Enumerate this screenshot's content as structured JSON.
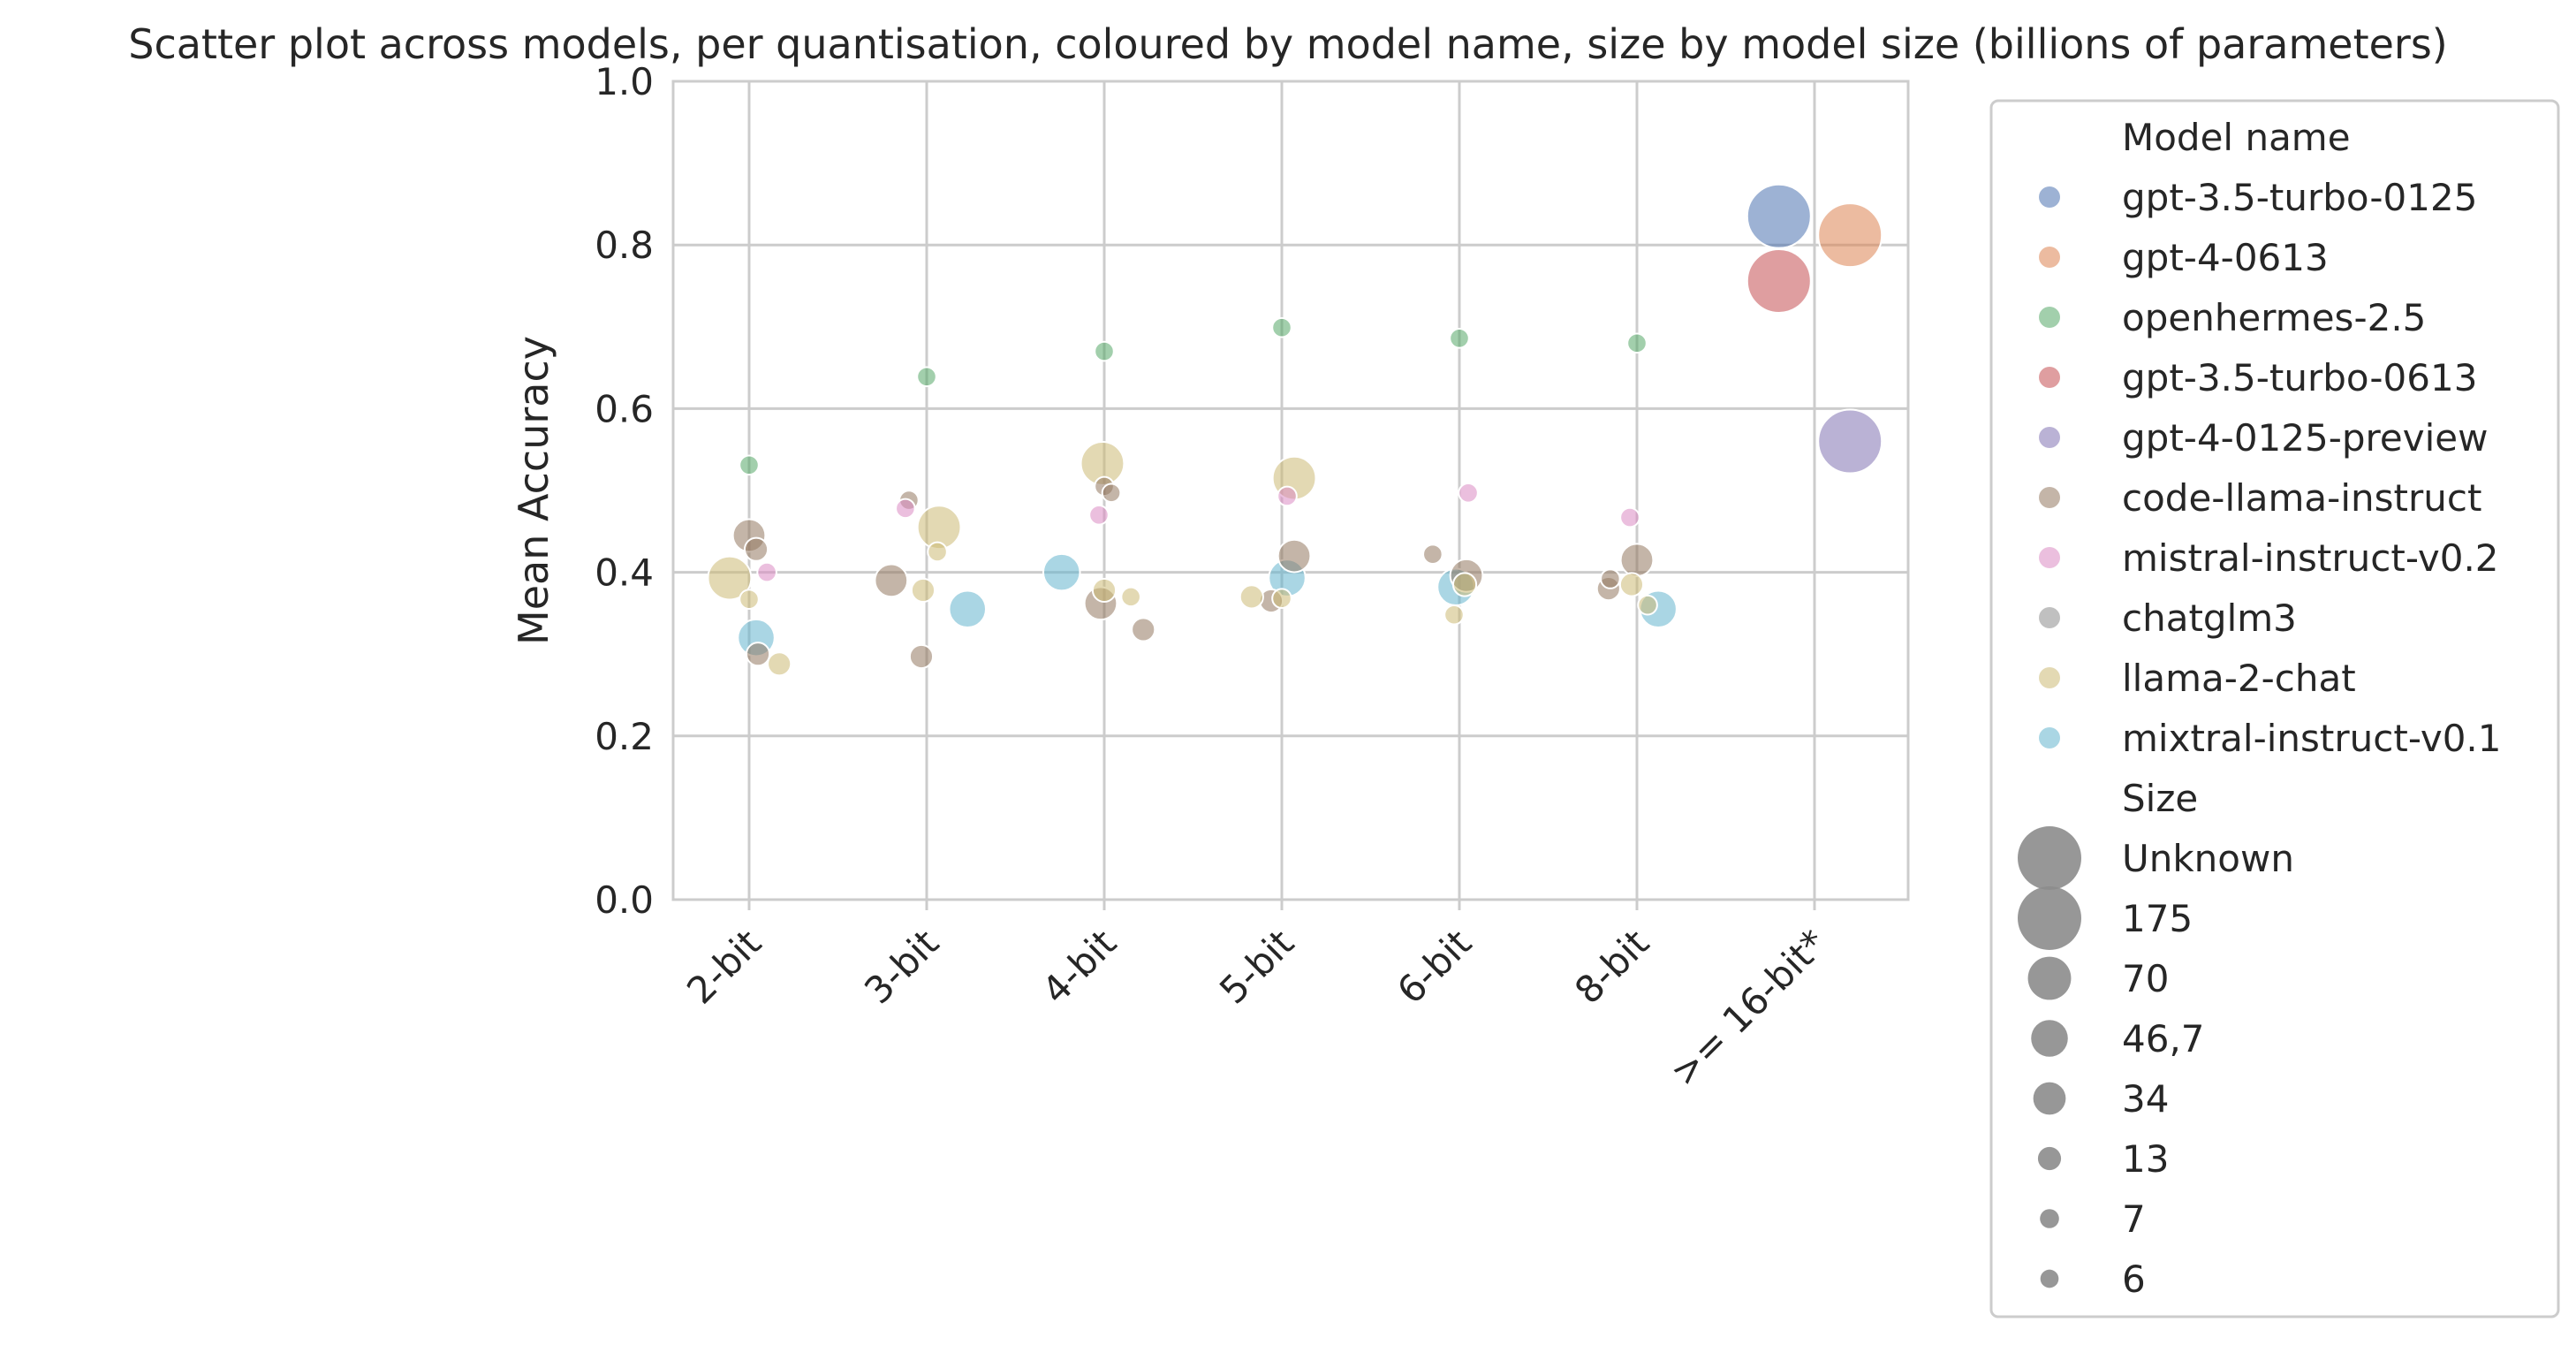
{
  "chart_data": {
    "type": "scatter",
    "title": "Scatter plot across models, per quantisation, coloured by model name, size by model size (billions of parameters)",
    "xlabel": "",
    "ylabel": "Mean Accuracy",
    "ylim": [
      0.0,
      1.0
    ],
    "yticks": [
      "0.0",
      "0.2",
      "0.4",
      "0.6",
      "0.8",
      "1.0"
    ],
    "categories": [
      "2-bit",
      "3-bit",
      "4-bit",
      "5-bit",
      "6-bit",
      "8-bit",
      ">= 16-bit*"
    ],
    "grid": true,
    "legend_placement": "outside-right",
    "legend": {
      "hue_title": "Model name",
      "size_title": "Size",
      "sizes": [
        {
          "label": "Unknown",
          "value": 1000
        },
        {
          "label": "175",
          "value": 175
        },
        {
          "label": "70",
          "value": 70
        },
        {
          "label": "46,7",
          "value": 46.7
        },
        {
          "label": "34",
          "value": 34
        },
        {
          "label": "13",
          "value": 13
        },
        {
          "label": "7",
          "value": 7
        },
        {
          "label": "6",
          "value": 6
        }
      ]
    },
    "series": [
      {
        "name": "gpt-3.5-turbo-0125",
        "color": "#4c72b0",
        "points": [
          {
            "cat": ">= 16-bit*",
            "offset": -0.2,
            "y": 0.835,
            "size": 1000
          }
        ]
      },
      {
        "name": "gpt-4-0613",
        "color": "#dd8452",
        "points": [
          {
            "cat": ">= 16-bit*",
            "offset": 0.2,
            "y": 0.812,
            "size": 1000
          }
        ]
      },
      {
        "name": "openhermes-2.5",
        "color": "#55a868",
        "points": [
          {
            "cat": "2-bit",
            "offset": 0.0,
            "y": 0.531,
            "size": 7
          },
          {
            "cat": "3-bit",
            "offset": 0.0,
            "y": 0.639,
            "size": 7
          },
          {
            "cat": "4-bit",
            "offset": 0.0,
            "y": 0.67,
            "size": 7
          },
          {
            "cat": "5-bit",
            "offset": 0.0,
            "y": 0.699,
            "size": 7
          },
          {
            "cat": "6-bit",
            "offset": 0.0,
            "y": 0.686,
            "size": 7
          },
          {
            "cat": "8-bit",
            "offset": 0.0,
            "y": 0.68,
            "size": 7
          }
        ]
      },
      {
        "name": "gpt-3.5-turbo-0613",
        "color": "#c44e52",
        "points": [
          {
            "cat": ">= 16-bit*",
            "offset": -0.2,
            "y": 0.756,
            "size": 175
          }
        ]
      },
      {
        "name": "gpt-4-0125-preview",
        "color": "#8172b3",
        "points": [
          {
            "cat": ">= 16-bit*",
            "offset": 0.2,
            "y": 0.56,
            "size": 1000
          }
        ]
      },
      {
        "name": "code-llama-instruct",
        "color": "#937860",
        "points": [
          {
            "cat": "2-bit",
            "offset": 0.0,
            "y": 0.445,
            "size": 34
          },
          {
            "cat": "2-bit",
            "offset": 0.04,
            "y": 0.428,
            "size": 13
          },
          {
            "cat": "2-bit",
            "offset": 0.05,
            "y": 0.3,
            "size": 13
          },
          {
            "cat": "3-bit",
            "offset": -0.1,
            "y": 0.488,
            "size": 7
          },
          {
            "cat": "3-bit",
            "offset": -0.2,
            "y": 0.39,
            "size": 34
          },
          {
            "cat": "3-bit",
            "offset": -0.03,
            "y": 0.297,
            "size": 13
          },
          {
            "cat": "4-bit",
            "offset": 0.0,
            "y": 0.505,
            "size": 7
          },
          {
            "cat": "4-bit",
            "offset": 0.04,
            "y": 0.497,
            "size": 6
          },
          {
            "cat": "4-bit",
            "offset": -0.02,
            "y": 0.362,
            "size": 34
          },
          {
            "cat": "4-bit",
            "offset": 0.22,
            "y": 0.33,
            "size": 13
          },
          {
            "cat": "5-bit",
            "offset": 0.07,
            "y": 0.42,
            "size": 34
          },
          {
            "cat": "5-bit",
            "offset": -0.06,
            "y": 0.365,
            "size": 13
          },
          {
            "cat": "6-bit",
            "offset": -0.15,
            "y": 0.422,
            "size": 7
          },
          {
            "cat": "6-bit",
            "offset": 0.04,
            "y": 0.396,
            "size": 34
          },
          {
            "cat": "8-bit",
            "offset": 0.0,
            "y": 0.415,
            "size": 34
          },
          {
            "cat": "8-bit",
            "offset": -0.16,
            "y": 0.38,
            "size": 13
          },
          {
            "cat": "8-bit",
            "offset": -0.15,
            "y": 0.392,
            "size": 7
          }
        ]
      },
      {
        "name": "mistral-instruct-v0.2",
        "color": "#da8bc3",
        "points": [
          {
            "cat": "2-bit",
            "offset": 0.1,
            "y": 0.4,
            "size": 7
          },
          {
            "cat": "3-bit",
            "offset": -0.12,
            "y": 0.478,
            "size": 7
          },
          {
            "cat": "4-bit",
            "offset": -0.03,
            "y": 0.47,
            "size": 7
          },
          {
            "cat": "5-bit",
            "offset": 0.03,
            "y": 0.493,
            "size": 7
          },
          {
            "cat": "6-bit",
            "offset": 0.05,
            "y": 0.497,
            "size": 7
          },
          {
            "cat": "8-bit",
            "offset": -0.04,
            "y": 0.467,
            "size": 7
          }
        ]
      },
      {
        "name": "chatglm3",
        "color": "#8c8c8c",
        "points": []
      },
      {
        "name": "llama-2-chat",
        "color": "#ccb974",
        "points": [
          {
            "cat": "2-bit",
            "offset": -0.11,
            "y": 0.393,
            "size": 70
          },
          {
            "cat": "2-bit",
            "offset": 0.0,
            "y": 0.367,
            "size": 7
          },
          {
            "cat": "2-bit",
            "offset": 0.17,
            "y": 0.288,
            "size": 13
          },
          {
            "cat": "3-bit",
            "offset": 0.07,
            "y": 0.455,
            "size": 70
          },
          {
            "cat": "3-bit",
            "offset": 0.06,
            "y": 0.425,
            "size": 7
          },
          {
            "cat": "3-bit",
            "offset": -0.02,
            "y": 0.378,
            "size": 13
          },
          {
            "cat": "4-bit",
            "offset": -0.01,
            "y": 0.533,
            "size": 70
          },
          {
            "cat": "4-bit",
            "offset": 0.0,
            "y": 0.378,
            "size": 13
          },
          {
            "cat": "4-bit",
            "offset": 0.15,
            "y": 0.37,
            "size": 7
          },
          {
            "cat": "5-bit",
            "offset": 0.07,
            "y": 0.515,
            "size": 70
          },
          {
            "cat": "5-bit",
            "offset": -0.17,
            "y": 0.37,
            "size": 13
          },
          {
            "cat": "5-bit",
            "offset": 0.0,
            "y": 0.368,
            "size": 7
          },
          {
            "cat": "6-bit",
            "offset": 0.03,
            "y": 0.385,
            "size": 13
          },
          {
            "cat": "6-bit",
            "offset": -0.03,
            "y": 0.348,
            "size": 7
          },
          {
            "cat": "8-bit",
            "offset": -0.03,
            "y": 0.385,
            "size": 13
          },
          {
            "cat": "8-bit",
            "offset": 0.06,
            "y": 0.36,
            "size": 7
          }
        ]
      },
      {
        "name": "mixtral-instruct-v0.1",
        "color": "#64b5cd",
        "points": [
          {
            "cat": "2-bit",
            "offset": 0.04,
            "y": 0.32,
            "size": 46.7
          },
          {
            "cat": "3-bit",
            "offset": 0.23,
            "y": 0.355,
            "size": 46.7
          },
          {
            "cat": "4-bit",
            "offset": -0.24,
            "y": 0.4,
            "size": 46.7
          },
          {
            "cat": "5-bit",
            "offset": 0.03,
            "y": 0.393,
            "size": 46.7
          },
          {
            "cat": "6-bit",
            "offset": -0.02,
            "y": 0.382,
            "size": 46.7
          },
          {
            "cat": "8-bit",
            "offset": 0.12,
            "y": 0.355,
            "size": 46.7
          }
        ]
      }
    ]
  }
}
